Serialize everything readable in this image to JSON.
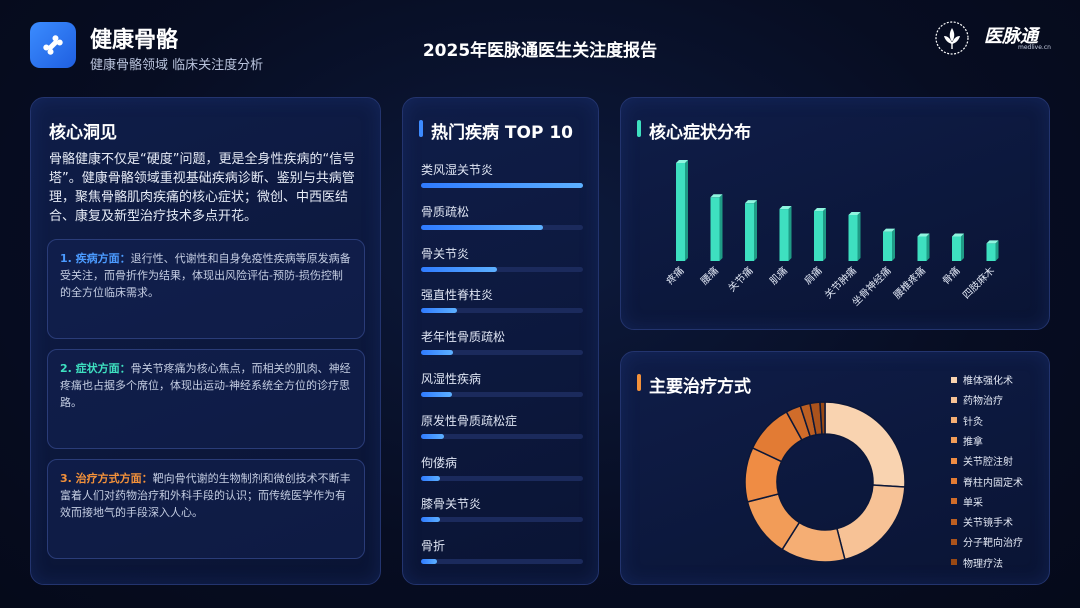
{
  "header": {
    "title": "健康骨骼",
    "subtitle": "健康骨骼领域 临床关注度分析",
    "report_title": "2025年医脉通医生关注度报告",
    "logo_text": "医脉通",
    "logo_url": "medlive.cn"
  },
  "insight": {
    "title": "核心洞见",
    "intro": "骨骼健康不仅是“硬度”问题，更是全身性疾病的“信号塔”。健康骨骼领域重视基础疾病诊断、鉴别与共病管理，聚焦骨骼肌肉疾痛的核心症状；微创、中西医结合、康复及新型治疗技术多点开花。",
    "cards": [
      {
        "lead": "1. 疾病方面：",
        "text": "退行性、代谢性和自身免疫性疾病等原发病备受关注，而骨折作为结果，体现出风险评估-预防-损伤控制的全方位临床需求。",
        "color": "#4b9bff"
      },
      {
        "lead": "2. 症状方面：",
        "text": "骨关节疼痛为核心焦点，而相关的肌肉、神经疼痛也占据多个席位，体现出运动-神经系统全方位的诊疗思路。",
        "color": "#3ee0c0"
      },
      {
        "lead": "3. 治疗方式方面：",
        "text": "靶向骨代谢的生物制剂和微创技术不断丰富着人们对药物治疗和外科手段的认识；而传统医学作为有效而接地气的手段深入人心。",
        "color": "#f3913a"
      }
    ]
  },
  "top10": {
    "title": "热门疾病 TOP 10",
    "accent": "#3d8bff",
    "items": [
      {
        "name": "类风湿关节炎",
        "value": 1.0
      },
      {
        "name": "骨质疏松",
        "value": 0.75
      },
      {
        "name": "骨关节炎",
        "value": 0.47
      },
      {
        "name": "强直性脊柱炎",
        "value": 0.22
      },
      {
        "name": "老年性骨质疏松",
        "value": 0.2
      },
      {
        "name": "风湿性疾病",
        "value": 0.19
      },
      {
        "name": "原发性骨质疏松症",
        "value": 0.14
      },
      {
        "name": "佝偻病",
        "value": 0.12
      },
      {
        "name": "膝骨关节炎",
        "value": 0.12
      },
      {
        "name": "骨折",
        "value": 0.1
      }
    ]
  },
  "chart_data": [
    {
      "type": "bar",
      "title": "核心症状分布",
      "color": "#3ee0c0",
      "categories": [
        "疼痛",
        "腰痛",
        "关节痛",
        "肌痛",
        "肩痛",
        "关节肿痛",
        "坐骨神经痛",
        "腰椎疼痛",
        "骨痛",
        "四肢麻木"
      ],
      "values": [
        100,
        65,
        59,
        53,
        51,
        47,
        30,
        25,
        25,
        18
      ]
    },
    {
      "type": "pie",
      "title": "主要治疗方式",
      "accent": "#f3913a",
      "categories": [
        "椎体强化术",
        "药物治疗",
        "针灸",
        "推拿",
        "关节腔注射",
        "脊柱内固定术",
        "单采",
        "关节镜手术",
        "分子靶向治疗",
        "物理疗法"
      ],
      "values": [
        26,
        20,
        13,
        12,
        11,
        10,
        3,
        2,
        2,
        1
      ],
      "colors": [
        "#f9d3b0",
        "#f7c296",
        "#f5ae74",
        "#f29c58",
        "#ef8c44",
        "#e27b34",
        "#d06c2a",
        "#bd5f22",
        "#ab531c",
        "#984814"
      ]
    }
  ]
}
